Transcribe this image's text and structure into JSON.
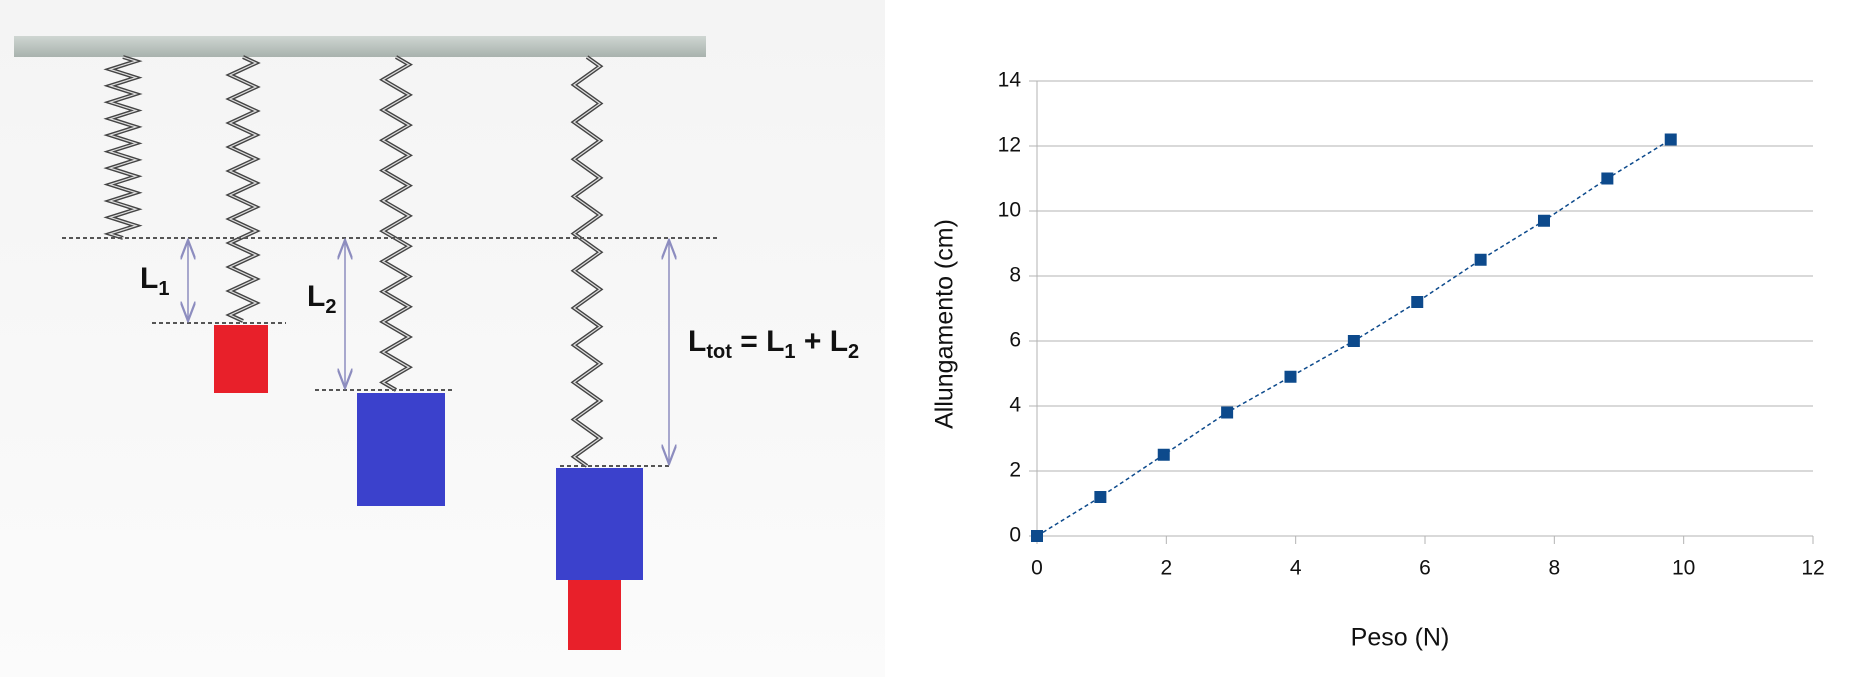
{
  "diagram": {
    "labels": [
      {
        "text": "L",
        "sub": "1"
      },
      {
        "text": "L",
        "sub": "2"
      }
    ],
    "formula": [
      {
        "text": "L",
        "sub": "tot"
      },
      {
        "text": " = L",
        "sub": "1"
      },
      {
        "text": " + L",
        "sub": "2"
      }
    ]
  },
  "chart_data": {
    "type": "scatter",
    "x_label": "Peso (N)",
    "y_label": "Allungamento (cm)",
    "series": [
      {
        "name": "Allungamento",
        "color": "#0d4a8c",
        "trend_line": "dotted",
        "x": [
          0,
          0.98,
          1.96,
          2.94,
          3.92,
          4.9,
          5.88,
          6.86,
          7.84,
          8.82,
          9.8
        ],
        "values": [
          0,
          1.2,
          2.5,
          3.8,
          4.9,
          6.0,
          7.2,
          8.5,
          9.7,
          11.0,
          12.2
        ]
      }
    ],
    "xlim": [
      0,
      12
    ],
    "xticks": [
      0,
      2,
      4,
      6,
      8,
      10,
      12
    ],
    "ylim": [
      0,
      14
    ],
    "yticks": [
      0,
      2,
      4,
      6,
      8,
      10,
      12,
      14
    ],
    "grid": true
  }
}
